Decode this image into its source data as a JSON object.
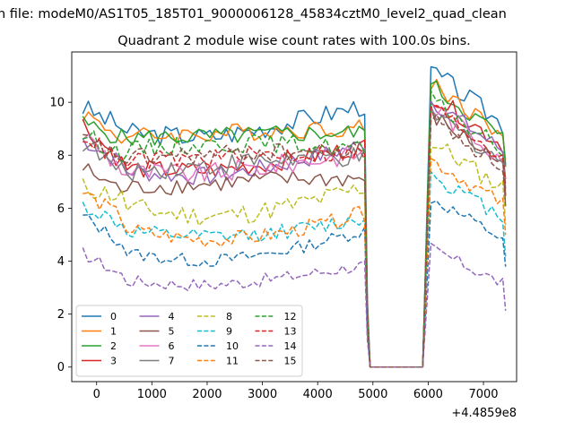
{
  "suptitle": "n file: modeM0/AS1T05_185T01_9000006128_45834cztM0_level2_quad_clean",
  "chart_data": {
    "type": "line",
    "title": "Quadrant 2 module wise count rates with 100.0s bins.",
    "xlabel": "",
    "ylabel": "",
    "offset_label": "+4.4859e8",
    "xlim": [
      -450,
      7600
    ],
    "ylim": [
      -0.55,
      11.9
    ],
    "xticks": [
      0,
      1000,
      2000,
      3000,
      4000,
      5000,
      6000,
      7000
    ],
    "yticks": [
      0,
      2,
      4,
      6,
      8,
      10
    ],
    "grid": false,
    "legend_position": "lower-left",
    "legend_columns": 4,
    "gap": [
      4900,
      5900
    ],
    "x": [
      -250,
      -150,
      -50,
      50,
      150,
      250,
      350,
      450,
      550,
      650,
      750,
      850,
      950,
      1050,
      1150,
      1250,
      1350,
      1450,
      1550,
      1650,
      1750,
      1850,
      1950,
      2050,
      2150,
      2250,
      2350,
      2450,
      2550,
      2650,
      2750,
      2850,
      2950,
      3050,
      3150,
      3250,
      3350,
      3450,
      3550,
      3650,
      3750,
      3850,
      3950,
      4050,
      4150,
      4250,
      4350,
      4450,
      4550,
      4650,
      4750,
      4850,
      4900,
      4950,
      5050,
      5150,
      5250,
      5350,
      5450,
      5550,
      5650,
      5750,
      5850,
      5900,
      6050,
      6150,
      6250,
      6350,
      6450,
      6550,
      6650,
      6750,
      6850,
      6950,
      7050,
      7150,
      7250,
      7350,
      7400
    ],
    "series": [
      {
        "name": "0",
        "color": "#1f77b4",
        "dash": "solid",
        "base": 9.0,
        "start": 9.8,
        "drift": -0.3,
        "rise": 1.0,
        "noise": 0.4,
        "post": 10.0
      },
      {
        "name": "1",
        "color": "#ff7f0e",
        "dash": "solid",
        "base": 8.6,
        "start": 9.6,
        "drift": 0.2,
        "rise": 0.5,
        "noise": 0.35,
        "post": 9.6
      },
      {
        "name": "2",
        "color": "#2ca02c",
        "dash": "solid",
        "base": 8.6,
        "start": 9.2,
        "drift": 0.1,
        "rise": 0.3,
        "noise": 0.35,
        "post": 9.5
      },
      {
        "name": "3",
        "color": "#d62728",
        "dash": "solid",
        "base": 7.6,
        "start": 9.2,
        "drift": -0.2,
        "rise": 0.8,
        "noise": 0.35,
        "post": 9.2
      },
      {
        "name": "4",
        "color": "#9467bd",
        "dash": "solid",
        "base": 7.6,
        "start": 8.6,
        "drift": -0.4,
        "rise": 0.9,
        "noise": 0.35,
        "post": 9.0
      },
      {
        "name": "5",
        "color": "#8c564b",
        "dash": "solid",
        "base": 6.6,
        "start": 7.5,
        "drift": 0.3,
        "rise": 0.6,
        "noise": 0.35,
        "post": 8.5
      },
      {
        "name": "6",
        "color": "#e377c2",
        "dash": "solid",
        "base": 7.4,
        "start": 8.8,
        "drift": -0.1,
        "rise": 0.8,
        "noise": 0.4,
        "post": 8.8
      },
      {
        "name": "7",
        "color": "#7f7f7f",
        "dash": "solid",
        "base": 7.2,
        "start": 8.5,
        "drift": 0.4,
        "rise": 0.8,
        "noise": 0.4,
        "post": 8.6
      },
      {
        "name": "8",
        "color": "#bcbd22",
        "dash": "dashed",
        "base": 6.4,
        "start": 6.8,
        "drift": -0.7,
        "rise": 0.4,
        "noise": 0.4,
        "post": 7.6
      },
      {
        "name": "9",
        "color": "#17becf",
        "dash": "dashed",
        "base": 5.3,
        "start": 6.1,
        "drift": -0.4,
        "rise": 0.3,
        "noise": 0.3,
        "post": 6.5
      },
      {
        "name": "10",
        "color": "#1f77b4",
        "dash": "dashed",
        "base": 4.6,
        "start": 5.7,
        "drift": -0.6,
        "rise": 0.6,
        "noise": 0.25,
        "post": 5.7
      },
      {
        "name": "11",
        "color": "#ff7f0e",
        "dash": "dashed",
        "base": 5.6,
        "start": 6.6,
        "drift": -0.8,
        "rise": 0.2,
        "noise": 0.3,
        "post": 7.0
      },
      {
        "name": "12",
        "color": "#2ca02c",
        "dash": "dashed",
        "base": 8.0,
        "start": 8.8,
        "drift": 0.4,
        "rise": 0.3,
        "noise": 0.35,
        "post": 9.0
      },
      {
        "name": "13",
        "color": "#d62728",
        "dash": "dashed",
        "base": 7.6,
        "start": 8.8,
        "drift": 0.3,
        "rise": 0.5,
        "noise": 0.35,
        "post": 8.8
      },
      {
        "name": "14",
        "color": "#9467bd",
        "dash": "dashed",
        "base": 3.4,
        "start": 4.3,
        "drift": -0.3,
        "rise": 0.5,
        "noise": 0.25,
        "post": 4.0
      },
      {
        "name": "15",
        "color": "#8c564b",
        "dash": "dashed",
        "base": 7.8,
        "start": 8.6,
        "drift": 0.2,
        "rise": 0.4,
        "noise": 0.35,
        "post": 8.4
      }
    ]
  }
}
